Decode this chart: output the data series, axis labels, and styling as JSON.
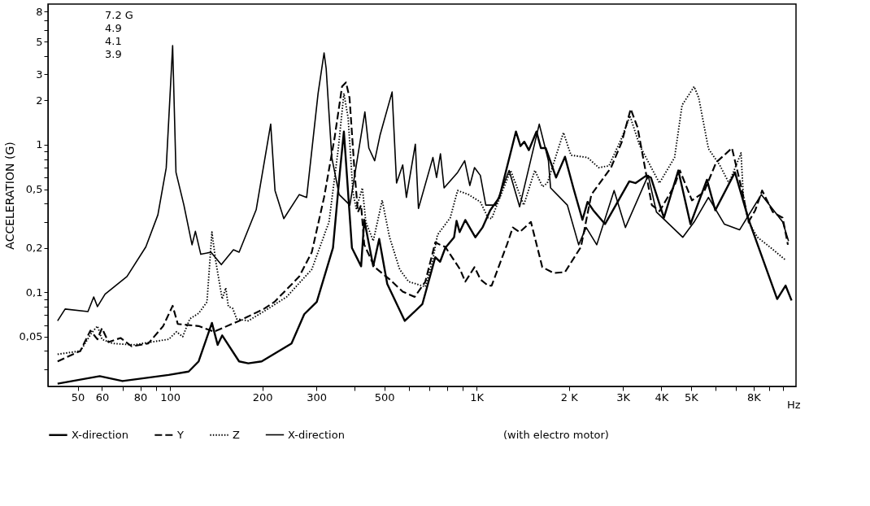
{
  "chart_data": {
    "type": "line",
    "xlabel": "Hz",
    "ylabel": "ACCELERATION   (G)",
    "log": "xy",
    "grid": false,
    "legend": "bottom",
    "xlim": [
      40,
      11000
    ],
    "ylim": [
      0.023,
      9
    ],
    "xticks": [
      50,
      60,
      {
        "value": 70,
        "label": null
      },
      80,
      {
        "value": 90,
        "label": null
      },
      100,
      200,
      300,
      {
        "value": 400,
        "label": null
      },
      500,
      {
        "value": 600,
        "label": null
      },
      {
        "value": 700,
        "label": null
      },
      {
        "value": 800,
        "label": null
      },
      {
        "value": 900,
        "label": null
      },
      {
        "value": 1000,
        "label": "1K"
      },
      {
        "value": 2000,
        "label": "2 K"
      },
      {
        "value": 3000,
        "label": "3K"
      },
      {
        "value": 4000,
        "label": "4K"
      },
      {
        "value": 5000,
        "label": "5K"
      },
      {
        "value": 6000,
        "label": null
      },
      {
        "value": 7000,
        "label": null
      },
      {
        "value": 8000,
        "label": "8K"
      },
      {
        "value": 9000,
        "label": null
      },
      {
        "value": 10000,
        "label": null
      }
    ],
    "yticks": [
      {
        "value": 0.03,
        "label": null
      },
      {
        "value": 0.04,
        "label": null
      },
      {
        "value": 0.05,
        "label": "0,05"
      },
      {
        "value": 0.06,
        "label": null
      },
      {
        "value": 0.07,
        "label": null
      },
      {
        "value": 0.08,
        "label": null
      },
      {
        "value": 0.09,
        "label": null
      },
      {
        "value": 0.1,
        "label": "0,1"
      },
      {
        "value": 0.2,
        "label": "0,2"
      },
      {
        "value": 0.3,
        "label": null
      },
      {
        "value": 0.4,
        "label": null
      },
      {
        "value": 0.5,
        "label": "0,5"
      },
      {
        "value": 0.6,
        "label": null
      },
      {
        "value": 0.7,
        "label": null
      },
      {
        "value": 0.8,
        "label": null
      },
      {
        "value": 0.9,
        "label": null
      },
      1,
      2,
      3,
      {
        "value": 4,
        "label": null
      },
      5,
      {
        "value": 6,
        "label": null
      },
      {
        "value": 7,
        "label": null
      },
      8
    ],
    "annotations": [
      "7.2 G",
      "4.9",
      "4.1",
      "3.9",
      "(with electro motor)"
    ],
    "series": [
      {
        "name": "X-direction",
        "color": "#000000",
        "line_style": "solid",
        "x": [
          43,
          59,
          70,
          99,
          115,
          124,
          137,
          143,
          148,
          168,
          180,
          199,
          249,
          274,
          301,
          340,
          358,
          369,
          392,
          420,
          430,
          460,
          481,
          511,
          583,
          665,
          733,
          760,
          790,
          844,
          860,
          880,
          918,
          990,
          1045,
          1107,
          1186,
          1343,
          1390,
          1430,
          1480,
          1567,
          1620,
          1680,
          1815,
          1941,
          2067,
          2213,
          2300,
          2400,
          2623,
          3146,
          3300,
          3581,
          3700,
          4080,
          4546,
          4980,
          5636,
          6000,
          6955,
          7710,
          9550,
          10170,
          10640
        ],
        "values": [
          0.024,
          0.027,
          0.025,
          0.0275,
          0.029,
          0.034,
          0.062,
          0.044,
          0.051,
          0.034,
          0.033,
          0.034,
          0.045,
          0.071,
          0.086,
          0.2,
          0.65,
          1.23,
          0.2,
          0.15,
          0.31,
          0.15,
          0.23,
          0.114,
          0.064,
          0.083,
          0.173,
          0.161,
          0.2,
          0.236,
          0.305,
          0.256,
          0.309,
          0.236,
          0.275,
          0.36,
          0.44,
          1.23,
          0.98,
          1.05,
          0.92,
          1.23,
          0.95,
          0.95,
          0.6,
          0.83,
          0.51,
          0.31,
          0.41,
          0.36,
          0.29,
          0.565,
          0.55,
          0.62,
          0.6,
          0.32,
          0.67,
          0.29,
          0.58,
          0.36,
          0.65,
          0.31,
          0.09,
          0.111,
          0.088
        ]
      },
      {
        "name": "Y",
        "color": "#000000",
        "line_style": "dashed",
        "x": [
          43,
          51,
          55,
          58,
          60,
          63,
          69,
          75,
          85,
          95,
          102,
          106,
          124,
          139,
          168,
          202,
          219,
          264,
          290,
          318,
          344,
          364,
          375,
          385,
          400,
          410,
          420,
          430,
          465,
          521,
          574,
          628,
          680,
          733,
          760,
          790,
          883,
          918,
          984,
          1030,
          1089,
          1119,
          1255,
          1312,
          1381,
          1503,
          1637,
          1783,
          1941,
          2188,
          2366,
          2742,
          2971,
          3180,
          3348,
          3726,
          3950,
          4420,
          4600,
          5036,
          5500,
          6040,
          6800,
          7360,
          7700,
          8100,
          8530,
          9240,
          9950,
          10350
        ],
        "values": [
          0.034,
          0.04,
          0.055,
          0.048,
          0.057,
          0.046,
          0.049,
          0.043,
          0.045,
          0.059,
          0.081,
          0.061,
          0.059,
          0.054,
          0.064,
          0.077,
          0.086,
          0.128,
          0.187,
          0.44,
          1.11,
          2.49,
          2.65,
          2.08,
          0.65,
          0.35,
          0.39,
          0.21,
          0.148,
          0.122,
          0.101,
          0.093,
          0.118,
          0.218,
          0.21,
          0.203,
          0.143,
          0.118,
          0.148,
          0.122,
          0.111,
          0.111,
          0.21,
          0.275,
          0.256,
          0.3,
          0.148,
          0.135,
          0.137,
          0.203,
          0.46,
          0.7,
          1.04,
          1.75,
          1.31,
          0.39,
          0.355,
          0.53,
          0.67,
          0.42,
          0.475,
          0.76,
          0.95,
          0.475,
          0.3,
          0.36,
          0.49,
          0.35,
          0.32,
          0.21
        ]
      },
      {
        "name": "Z",
        "color": "#000000",
        "line_style": "dotted",
        "x": [
          43,
          51,
          55.5,
          58,
          60,
          65,
          76,
          99,
          105,
          110,
          116,
          124,
          132,
          137,
          141,
          148,
          152,
          155,
          160,
          165,
          180,
          202,
          240,
          290,
          330,
          354,
          369,
          381,
          395,
          405,
          424,
          435,
          460,
          492,
          520,
          561,
          600,
          680,
          720,
          745,
          820,
          867,
          940,
          1028,
          1089,
          1119,
          1291,
          1424,
          1548,
          1640,
          1700,
          1919,
          2030,
          2300,
          2500,
          2700,
          2971,
          3162,
          3400,
          3945,
          4420,
          4677,
          5120,
          5300,
          5700,
          6200,
          6650,
          7280,
          7400,
          7700,
          8240,
          9030,
          10120
        ],
        "values": [
          0.038,
          0.04,
          0.053,
          0.059,
          0.048,
          0.045,
          0.044,
          0.048,
          0.054,
          0.05,
          0.066,
          0.072,
          0.086,
          0.256,
          0.162,
          0.09,
          0.107,
          0.08,
          0.078,
          0.066,
          0.064,
          0.074,
          0.093,
          0.143,
          0.3,
          0.95,
          2.23,
          1.52,
          0.475,
          0.37,
          0.51,
          0.3,
          0.223,
          0.42,
          0.236,
          0.143,
          0.118,
          0.109,
          0.167,
          0.245,
          0.32,
          0.49,
          0.46,
          0.41,
          0.32,
          0.316,
          0.67,
          0.39,
          0.67,
          0.52,
          0.55,
          1.21,
          0.85,
          0.82,
          0.7,
          0.72,
          1.11,
          1.57,
          0.99,
          0.55,
          0.82,
          1.86,
          2.48,
          2.08,
          0.94,
          0.73,
          0.55,
          0.88,
          0.46,
          0.3,
          0.236,
          0.203,
          0.167
        ]
      },
      {
        "name": "X-direction",
        "color": "#000000",
        "line_style": "solid",
        "x": [
          43,
          45.5,
          54,
          56.4,
          58,
          61.4,
          72.4,
          83.4,
          91.3,
          97.2,
          102,
          104.6,
          111,
          118,
          121,
          126,
          136,
          147,
          161,
          168,
          191,
          213,
          220,
          235,
          264,
          279,
          304,
          318,
          323,
          337,
          356,
          386,
          432,
          445,
          465,
          484,
          530,
          548,
          574,
          590,
          631,
          646,
          720,
          740,
          762,
          783,
          867,
          914,
          950,
          984,
          1028,
          1071,
          1153,
          1276,
          1381,
          1600,
          1714,
          1742,
          1976,
          2151,
          2276,
          2464,
          2807,
          3055,
          3625,
          3857,
          4700,
          5120,
          5700,
          6420,
          7200,
          8480,
          9950,
          10400
        ],
        "values": [
          0.064,
          0.077,
          0.074,
          0.093,
          0.08,
          0.097,
          0.128,
          0.203,
          0.335,
          0.697,
          4.7,
          0.65,
          0.39,
          0.21,
          0.259,
          0.181,
          0.187,
          0.154,
          0.194,
          0.187,
          0.363,
          1.38,
          0.49,
          0.316,
          0.46,
          0.44,
          2.23,
          4.2,
          3.3,
          0.82,
          0.46,
          0.39,
          1.67,
          0.95,
          0.78,
          1.16,
          2.28,
          0.55,
          0.73,
          0.44,
          1.01,
          0.37,
          0.82,
          0.6,
          0.87,
          0.51,
          0.65,
          0.78,
          0.53,
          0.7,
          0.62,
          0.39,
          0.39,
          0.67,
          0.38,
          1.38,
          0.78,
          0.51,
          0.39,
          0.21,
          0.275,
          0.21,
          0.49,
          0.275,
          0.62,
          0.35,
          0.236,
          0.3,
          0.44,
          0.29,
          0.265,
          0.46,
          0.3,
          0.223
        ]
      }
    ]
  }
}
